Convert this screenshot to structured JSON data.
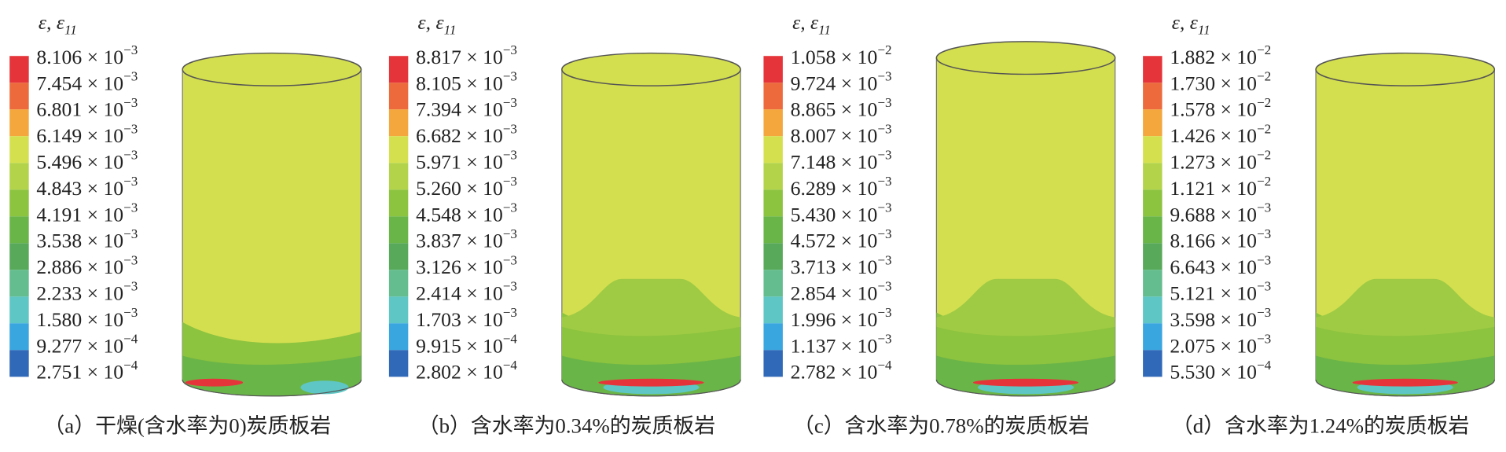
{
  "panels": [
    {
      "legend_title": [
        "ε, ε",
        "11"
      ],
      "caption": "（a）干燥(含水率为0)炭质板岩",
      "labels": [
        [
          "8.106 × 10",
          "−3"
        ],
        [
          "7.454 × 10",
          "−3"
        ],
        [
          "6.801 × 10",
          "−3"
        ],
        [
          "6.149 × 10",
          "−3"
        ],
        [
          "5.496 × 10",
          "−3"
        ],
        [
          "4.843 × 10",
          "−3"
        ],
        [
          "4.191 × 10",
          "−3"
        ],
        [
          "3.538 × 10",
          "−3"
        ],
        [
          "2.886 × 10",
          "−3"
        ],
        [
          "2.233 × 10",
          "−3"
        ],
        [
          "1.580 × 10",
          "−3"
        ],
        [
          "9.277 × 10",
          "−4"
        ],
        [
          "2.751 × 10",
          "−4"
        ]
      ]
    },
    {
      "legend_title": [
        "ε, ε",
        "11"
      ],
      "caption": "（b）含水率为0.34%的炭质板岩",
      "labels": [
        [
          "8.817 × 10",
          "−3"
        ],
        [
          "8.105 × 10",
          "−3"
        ],
        [
          "7.394 × 10",
          "−3"
        ],
        [
          "6.682 × 10",
          "−3"
        ],
        [
          "5.971 × 10",
          "−3"
        ],
        [
          "5.260 × 10",
          "−3"
        ],
        [
          "4.548 × 10",
          "−3"
        ],
        [
          "3.837 × 10",
          "−3"
        ],
        [
          "3.126 × 10",
          "−3"
        ],
        [
          "2.414 × 10",
          "−3"
        ],
        [
          "1.703 × 10",
          "−3"
        ],
        [
          "9.915 × 10",
          "−4"
        ],
        [
          "2.802 × 10",
          "−4"
        ]
      ]
    },
    {
      "legend_title": [
        "ε, ε",
        "11"
      ],
      "caption": "（c）含水率为0.78%的炭质板岩",
      "labels": [
        [
          "1.058 × 10",
          "−2"
        ],
        [
          "9.724 × 10",
          "−3"
        ],
        [
          "8.865 × 10",
          "−3"
        ],
        [
          "8.007 × 10",
          "−3"
        ],
        [
          "7.148 × 10",
          "−3"
        ],
        [
          "6.289 × 10",
          "−3"
        ],
        [
          "5.430 × 10",
          "−3"
        ],
        [
          "4.572 × 10",
          "−3"
        ],
        [
          "3.713 × 10",
          "−3"
        ],
        [
          "2.854 × 10",
          "−3"
        ],
        [
          "1.996 × 10",
          "−3"
        ],
        [
          "1.137 × 10",
          "−3"
        ],
        [
          "2.782 × 10",
          "−4"
        ]
      ]
    },
    {
      "legend_title": [
        "ε, ε",
        "11"
      ],
      "caption": "（d）含水率为1.24%的炭质板岩",
      "labels": [
        [
          "1.882 × 10",
          "−2"
        ],
        [
          "1.730 × 10",
          "−2"
        ],
        [
          "1.578 × 10",
          "−2"
        ],
        [
          "1.426 × 10",
          "−2"
        ],
        [
          "1.273 × 10",
          "−2"
        ],
        [
          "1.121 × 10",
          "−2"
        ],
        [
          "9.688 × 10",
          "−3"
        ],
        [
          "8.166 × 10",
          "−3"
        ],
        [
          "6.643 × 10",
          "−3"
        ],
        [
          "5.121 × 10",
          "−3"
        ],
        [
          "3.598 × 10",
          "−3"
        ],
        [
          "2.075 × 10",
          "−3"
        ],
        [
          "5.530 × 10",
          "−4"
        ]
      ]
    }
  ]
}
